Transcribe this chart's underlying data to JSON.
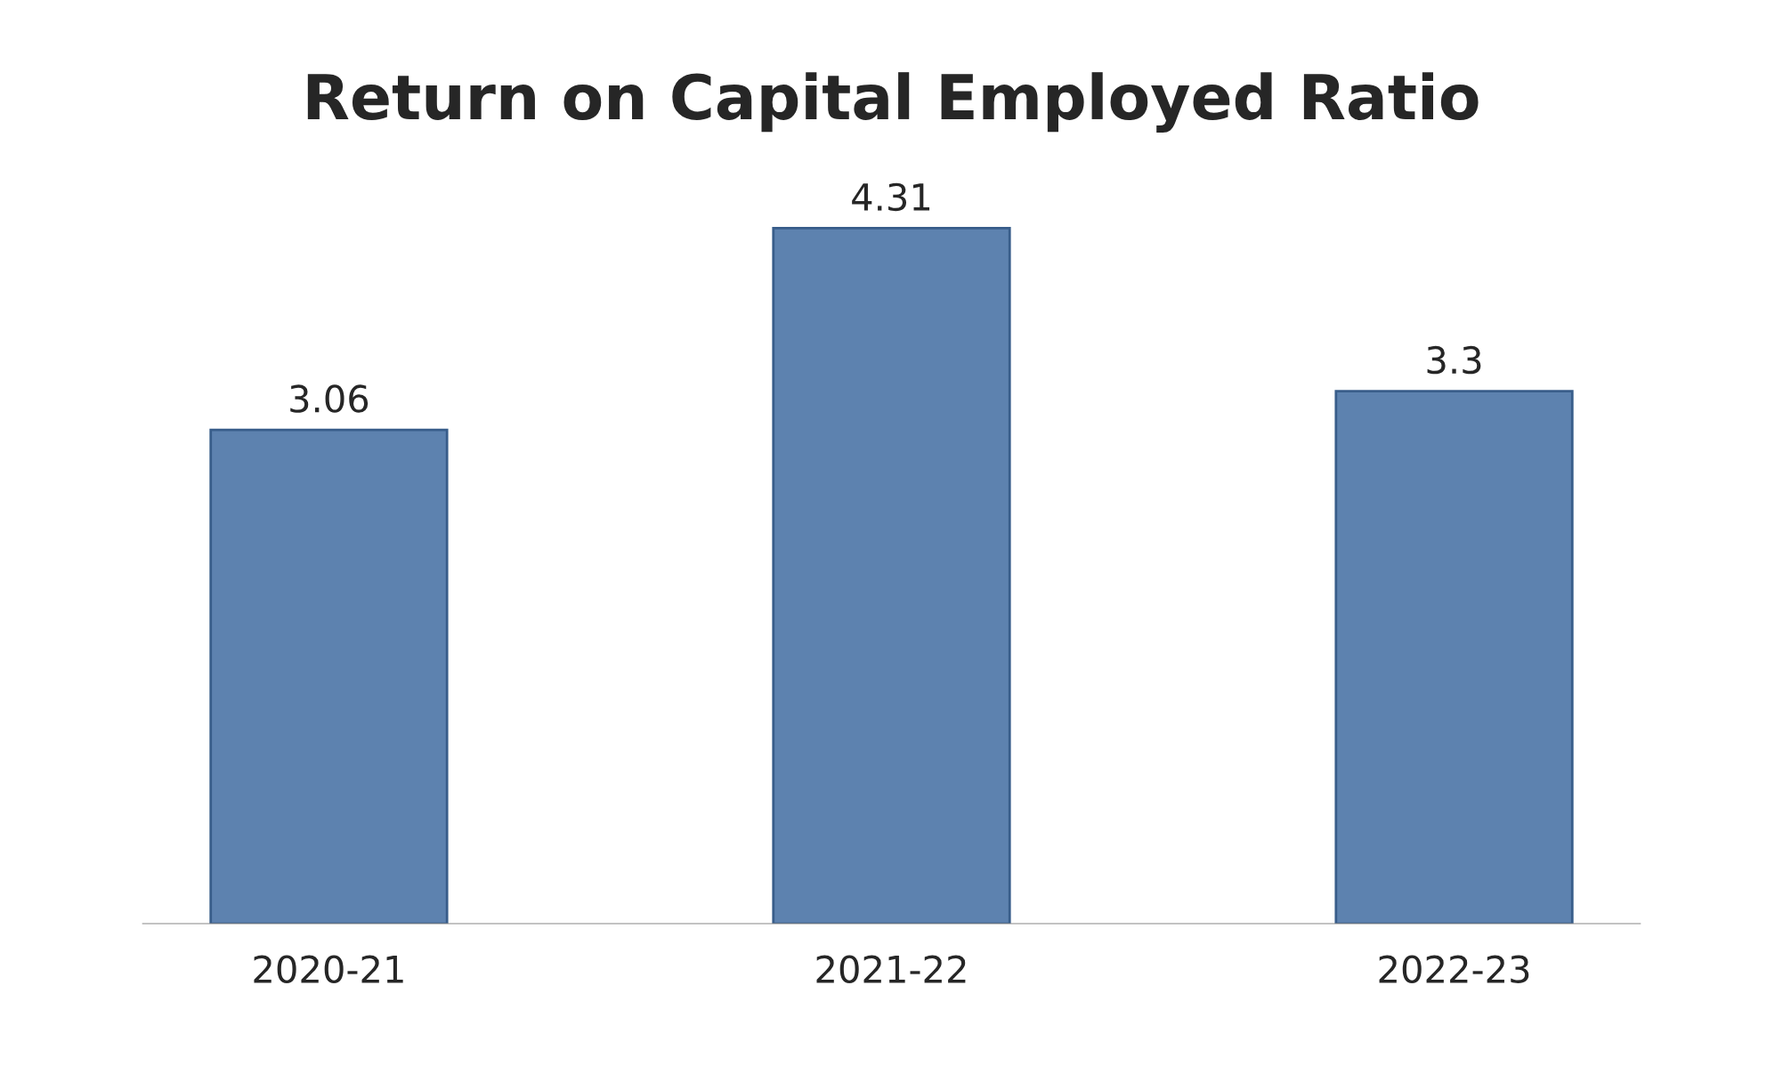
{
  "chart_data": {
    "type": "bar",
    "title": "Return on Capital Employed Ratio",
    "categories": [
      "2020-21",
      "2021-22",
      "2022-23"
    ],
    "values": [
      3.06,
      4.31,
      3.3
    ],
    "color": "#4f81bd",
    "data_labels": true,
    "tick_labels": "x",
    "grid": false,
    "legend": false
  }
}
